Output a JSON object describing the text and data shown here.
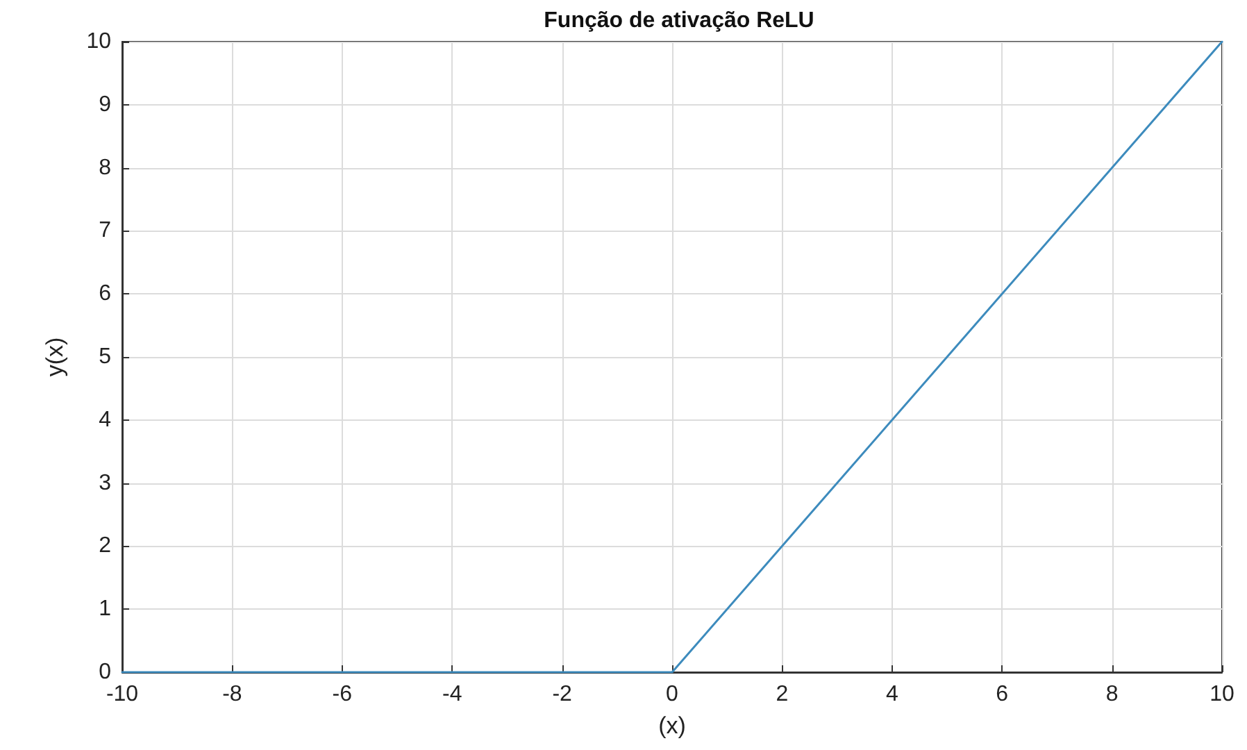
{
  "chart_data": {
    "type": "line",
    "title": "Função de ativação ReLU",
    "xlabel": "(x)",
    "ylabel": "y(x)",
    "x": [
      -10,
      0,
      10
    ],
    "series": [
      {
        "color": "#3d8bbd",
        "values": [
          0,
          0,
          10
        ]
      }
    ],
    "xlim": [
      -10,
      10
    ],
    "xticks": [
      -10,
      -8,
      -6,
      -4,
      -2,
      0,
      2,
      4,
      6,
      8,
      10
    ],
    "ylim": [
      0,
      10
    ],
    "yticks": [
      0,
      1,
      2,
      3,
      4,
      5,
      6,
      7,
      8,
      9,
      10
    ],
    "grid": true,
    "marker": "none",
    "line_style": "solid"
  }
}
